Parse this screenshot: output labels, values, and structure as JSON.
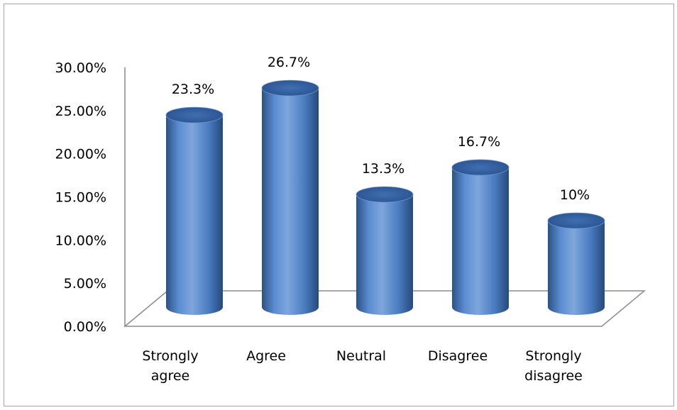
{
  "chart_data": {
    "type": "bar",
    "style": "3d-cylinder",
    "title": "",
    "xlabel": "",
    "ylabel": "",
    "categories": [
      "Strongly agree",
      "Agree",
      "Neutral",
      "Disagree",
      "Strongly disagree"
    ],
    "category_lines": [
      [
        "Strongly",
        "agree"
      ],
      [
        "Agree"
      ],
      [
        "Neutral"
      ],
      [
        "Disagree"
      ],
      [
        "Strongly",
        "disagree"
      ]
    ],
    "values": [
      23.3,
      26.7,
      13.3,
      16.7,
      10
    ],
    "data_labels": [
      "23.3%",
      "26.7%",
      "13.3%",
      "16.7%",
      "10%"
    ],
    "y_ticks": [
      "0.00%",
      "5.00%",
      "10.00%",
      "15.00%",
      "20.00%",
      "25.00%",
      "30.00%"
    ],
    "ylim": [
      0,
      30
    ],
    "grid": false,
    "legend": "none",
    "bar_color": "#4f81bd",
    "bar_dark": "#2c5286",
    "bar_light": "#7ea6dc"
  }
}
